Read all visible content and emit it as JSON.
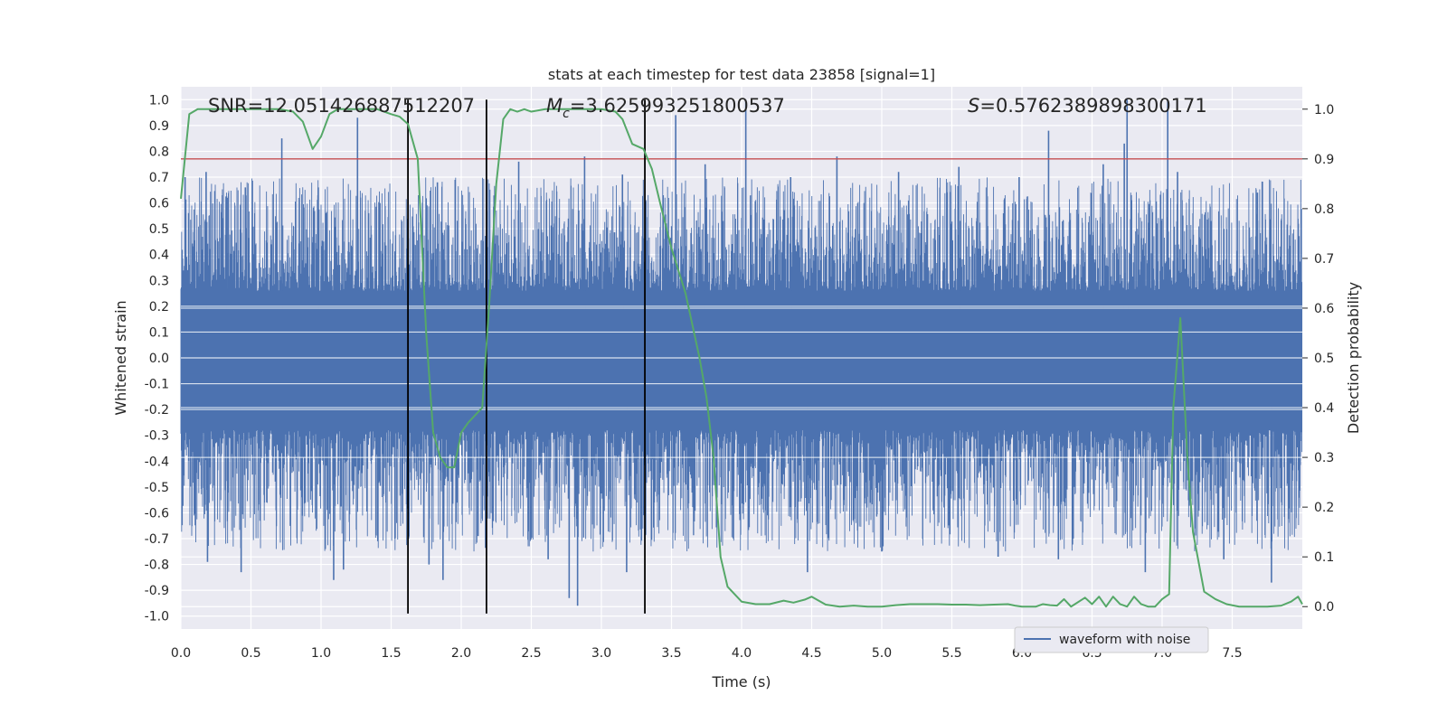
{
  "chart_data": {
    "type": "line",
    "title": "stats at each timestep for test data 23858 [signal=1]",
    "xlabel": "Time (s)",
    "ylabel_left": "Whitened strain",
    "ylabel_right": "Detection probability",
    "xlim": [
      0,
      8
    ],
    "ylim_left": [
      -1.05,
      1.05
    ],
    "ylim_right": [
      -0.045,
      1.045
    ],
    "x_ticks": [
      "0.0",
      "0.5",
      "1.0",
      "1.5",
      "2.0",
      "2.5",
      "3.0",
      "3.5",
      "4.0",
      "4.5",
      "5.0",
      "5.5",
      "6.0",
      "6.5",
      "7.0",
      "7.5"
    ],
    "y_ticks_left": [
      "1.0",
      "0.9",
      "0.8",
      "0.7",
      "0.6",
      "0.5",
      "0.4",
      "0.3",
      "0.2",
      "0.1",
      "0.0",
      "-0.1",
      "-0.2",
      "-0.3",
      "-0.4",
      "-0.5",
      "-0.6",
      "-0.7",
      "-0.8",
      "-0.9",
      "-1.0"
    ],
    "y_ticks_right": [
      "1.0",
      "0.9",
      "0.8",
      "0.7",
      "0.6",
      "0.5",
      "0.4",
      "0.3",
      "0.2",
      "0.1",
      "0.0"
    ],
    "grid": true,
    "legend_position": "bottom-right",
    "annotations": {
      "snr": "SNR=12.051426887512207",
      "mc_symbol": "M",
      "mc_sub": "c",
      "mc_value": "=3.625993251800537",
      "s_symbol": "S",
      "s_value": "=0.5762389898300171"
    },
    "threshold": {
      "prob": 0.9,
      "color": "#c44e52"
    },
    "vertical_lines": [
      1.62,
      2.18,
      3.31
    ],
    "series": [
      {
        "name": "waveform with noise",
        "axis": "left",
        "color": "#4c72b0",
        "duration": 8,
        "peaks": [
          {
            "t": 0.03,
            "v": 0.7
          },
          {
            "t": 0.18,
            "v": 0.72
          },
          {
            "t": 0.33,
            "v": 0.62
          },
          {
            "t": 0.46,
            "v": 0.66
          },
          {
            "t": 0.72,
            "v": 0.85
          },
          {
            "t": 0.98,
            "v": 0.66
          },
          {
            "t": 1.26,
            "v": 0.93
          },
          {
            "t": 1.42,
            "v": 0.6
          },
          {
            "t": 1.83,
            "v": 0.68
          },
          {
            "t": 2.41,
            "v": 0.76
          },
          {
            "t": 2.88,
            "v": 0.78
          },
          {
            "t": 3.15,
            "v": 0.71
          },
          {
            "t": 3.53,
            "v": 0.94
          },
          {
            "t": 3.74,
            "v": 0.75
          },
          {
            "t": 4.03,
            "v": 1.0
          },
          {
            "t": 4.35,
            "v": 0.7
          },
          {
            "t": 4.68,
            "v": 0.78
          },
          {
            "t": 5.12,
            "v": 0.72
          },
          {
            "t": 5.55,
            "v": 0.74
          },
          {
            "t": 5.98,
            "v": 0.7
          },
          {
            "t": 6.19,
            "v": 0.88
          },
          {
            "t": 6.58,
            "v": 0.75
          },
          {
            "t": 6.75,
            "v": 1.0
          },
          {
            "t": 6.73,
            "v": 0.83
          },
          {
            "t": 7.04,
            "v": 1.0
          },
          {
            "t": 7.11,
            "v": 0.72
          },
          {
            "t": 7.68,
            "v": 0.64
          }
        ],
        "troughs": [
          {
            "t": 0.19,
            "v": -0.79
          },
          {
            "t": 0.43,
            "v": -0.83
          },
          {
            "t": 1.09,
            "v": -0.86
          },
          {
            "t": 1.16,
            "v": -0.82
          },
          {
            "t": 1.77,
            "v": -0.8
          },
          {
            "t": 1.87,
            "v": -0.86
          },
          {
            "t": 2.12,
            "v": -0.69
          },
          {
            "t": 2.62,
            "v": -0.78
          },
          {
            "t": 2.77,
            "v": -0.93
          },
          {
            "t": 2.83,
            "v": -0.96
          },
          {
            "t": 3.18,
            "v": -0.83
          },
          {
            "t": 4.47,
            "v": -0.83
          },
          {
            "t": 5.0,
            "v": -0.75
          },
          {
            "t": 5.83,
            "v": -0.77
          },
          {
            "t": 6.26,
            "v": -0.78
          },
          {
            "t": 6.88,
            "v": -0.83
          },
          {
            "t": 7.44,
            "v": -0.78
          },
          {
            "t": 7.78,
            "v": -0.87
          }
        ]
      },
      {
        "name": "detection probability",
        "axis": "right",
        "color": "#55a868",
        "t": [
          0.0,
          0.06,
          0.12,
          0.2,
          0.3,
          0.4,
          0.5,
          0.6,
          0.7,
          0.8,
          0.87,
          0.94,
          1.0,
          1.06,
          1.12,
          1.2,
          1.3,
          1.4,
          1.5,
          1.56,
          1.62,
          1.69,
          1.75,
          1.8,
          1.85,
          1.9,
          1.95,
          2.0,
          2.05,
          2.1,
          2.15,
          2.2,
          2.25,
          2.3,
          2.35,
          2.4,
          2.45,
          2.5,
          2.6,
          2.7,
          2.8,
          2.9,
          3.0,
          3.1,
          3.15,
          3.22,
          3.3,
          3.36,
          3.42,
          3.5,
          3.6,
          3.7,
          3.75,
          3.8,
          3.85,
          3.9,
          4.0,
          4.1,
          4.2,
          4.3,
          4.37,
          4.45,
          4.5,
          4.6,
          4.7,
          4.8,
          4.9,
          5.0,
          5.1,
          5.2,
          5.3,
          5.4,
          5.5,
          5.6,
          5.7,
          5.8,
          5.9,
          5.95,
          6.0,
          6.05,
          6.1,
          6.15,
          6.2,
          6.25,
          6.3,
          6.35,
          6.45,
          6.5,
          6.55,
          6.6,
          6.65,
          6.7,
          6.75,
          6.8,
          6.85,
          6.9,
          6.95,
          7.0,
          7.05,
          7.08,
          7.13,
          7.18,
          7.22,
          7.3,
          7.38,
          7.46,
          7.55,
          7.65,
          7.75,
          7.85,
          7.92,
          7.97,
          8.0
        ],
        "v": [
          0.82,
          0.99,
          1.0,
          1.0,
          1.0,
          1.0,
          1.0,
          1.0,
          1.0,
          0.995,
          0.975,
          0.92,
          0.945,
          0.99,
          1.0,
          1.0,
          1.0,
          1.0,
          0.99,
          0.985,
          0.97,
          0.9,
          0.55,
          0.35,
          0.3,
          0.28,
          0.28,
          0.35,
          0.37,
          0.385,
          0.4,
          0.61,
          0.85,
          0.98,
          1.0,
          0.995,
          1.0,
          0.995,
          1.0,
          1.0,
          1.0,
          1.0,
          1.0,
          0.995,
          0.98,
          0.93,
          0.92,
          0.88,
          0.81,
          0.72,
          0.63,
          0.5,
          0.42,
          0.3,
          0.1,
          0.04,
          0.01,
          0.005,
          0.005,
          0.012,
          0.008,
          0.014,
          0.02,
          0.004,
          0.0,
          0.002,
          0.0,
          0.0,
          0.003,
          0.005,
          0.005,
          0.005,
          0.004,
          0.004,
          0.003,
          0.004,
          0.005,
          0.002,
          0.0,
          0.0,
          0.0,
          0.005,
          0.003,
          0.002,
          0.015,
          0.0,
          0.018,
          0.005,
          0.02,
          0.0,
          0.02,
          0.005,
          0.0,
          0.02,
          0.005,
          0.0,
          0.0,
          0.015,
          0.025,
          0.4,
          0.58,
          0.3,
          0.15,
          0.03,
          0.015,
          0.005,
          0.0,
          0.0,
          0.0,
          0.002,
          0.01,
          0.02,
          0.005
        ]
      }
    ]
  },
  "legend": {
    "label": "waveform with noise"
  }
}
